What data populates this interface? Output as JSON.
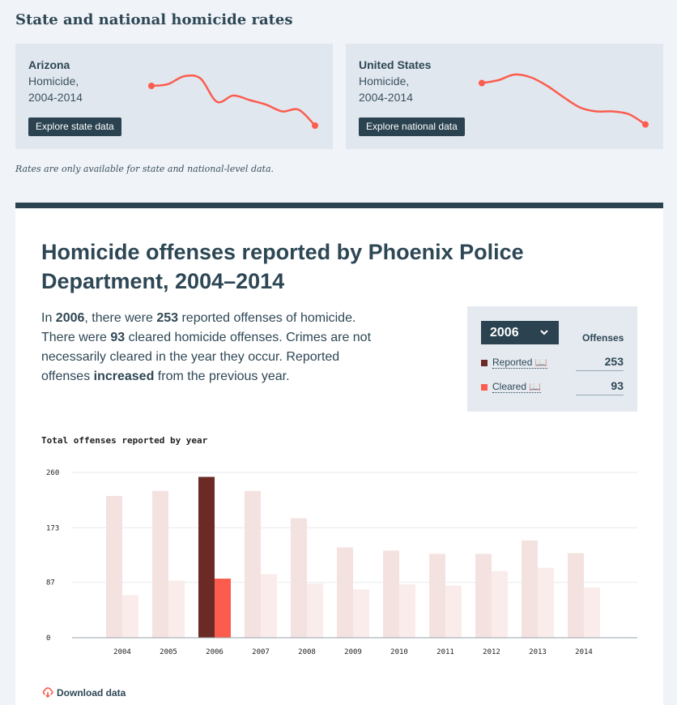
{
  "header": {
    "title": "State and national homicide rates"
  },
  "state_card": {
    "name": "Arizona",
    "line1": "Homicide,",
    "line2": "2004-2014",
    "button": "Explore state data",
    "trend": [
      0.8,
      0.83,
      0.97,
      0.93,
      0.52,
      0.63,
      0.55,
      0.47,
      0.35,
      0.38,
      0.1
    ]
  },
  "national_card": {
    "name": "United States",
    "line1": "Homicide,",
    "line2": "2004-2014",
    "button": "Explore national data",
    "trend": [
      0.85,
      0.9,
      1.0,
      0.95,
      0.8,
      0.6,
      0.42,
      0.35,
      0.35,
      0.3,
      0.12
    ]
  },
  "note": "Rates are only available for state and national-level data.",
  "main": {
    "title": "Homicide offenses reported by Phoenix Police Department, 2004–2014",
    "summary": {
      "p1": "In ",
      "year": "2006",
      "p2": ", there were ",
      "reported": "253",
      "p3": " reported offenses of homicide. There were ",
      "cleared": "93",
      "p4": " cleared homicide offenses. Crimes are not necessarily cleared in the year they occur. Reported offenses ",
      "trend_word": "increased",
      "p5": " from the previous year."
    }
  },
  "legend": {
    "selected_year": "2006",
    "chevron_icon": "chevron-down-icon",
    "column_header": "Offenses",
    "reported_label": "Reported 📖",
    "reported_value": "253",
    "cleared_label": "Cleared 📖",
    "cleared_value": "93",
    "reported_color": "#6b2a25",
    "cleared_color": "#fb5c4e"
  },
  "chart_label": "Total offenses reported by year",
  "chart_data": {
    "type": "bar",
    "title": "Total offenses reported by year",
    "categories": [
      "2004",
      "2005",
      "2006",
      "2007",
      "2008",
      "2009",
      "2010",
      "2011",
      "2012",
      "2013",
      "2014"
    ],
    "series": [
      {
        "name": "Reported",
        "values": [
          223,
          231,
          253,
          231,
          188,
          142,
          137,
          132,
          132,
          153,
          133
        ]
      },
      {
        "name": "Cleared",
        "values": [
          67,
          90,
          93,
          100,
          85,
          76,
          84,
          82,
          105,
          110,
          79
        ]
      }
    ],
    "yticks": [
      0,
      87,
      173,
      260
    ],
    "ylim": [
      0,
      260
    ],
    "highlight_category": "2006",
    "colors": {
      "reported": "#6b2a25",
      "cleared": "#fb5c4e",
      "reported_muted": "#f4e2e1",
      "cleared_muted": "#fbecec"
    }
  },
  "download": {
    "label": "Download data",
    "icon": "cloud-download-icon"
  }
}
